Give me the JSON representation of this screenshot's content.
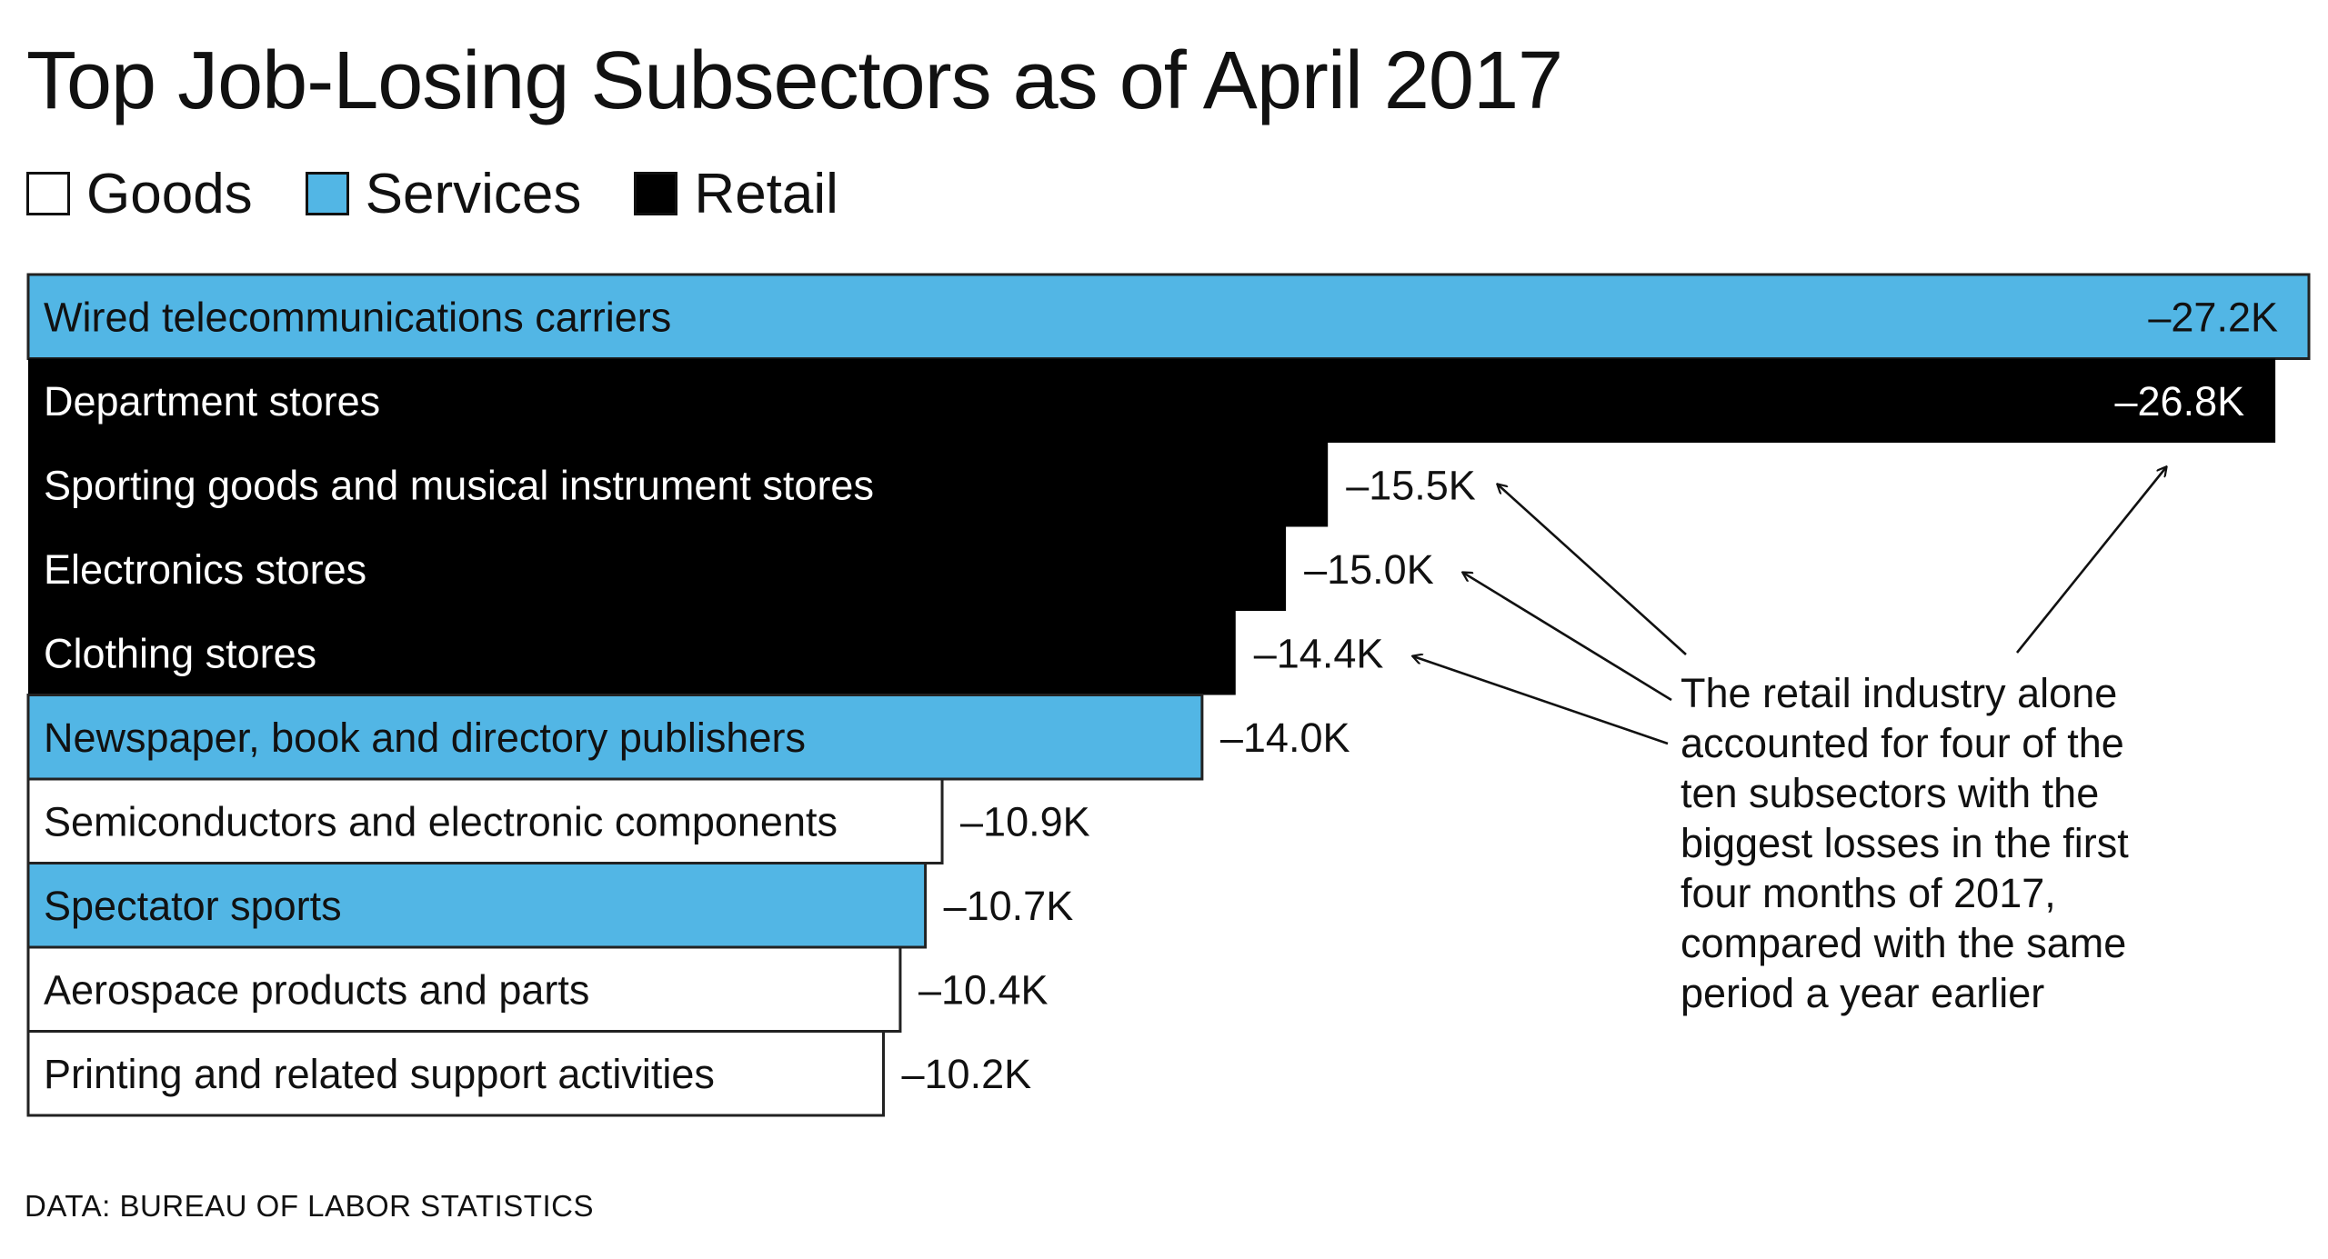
{
  "chart_data": {
    "type": "bar",
    "orientation": "horizontal",
    "title": "Top Job-Losing Subsectors as of April 2017",
    "legend": [
      {
        "name": "Goods",
        "color": "#ffffff"
      },
      {
        "name": "Services",
        "color": "#52b6e5"
      },
      {
        "name": "Retail",
        "color": "#000000"
      }
    ],
    "units": "thousands of jobs",
    "bars": [
      {
        "label": "Wired telecommunications carriers",
        "value": -27.2,
        "value_label": "–27.2K",
        "sector": "Services"
      },
      {
        "label": "Department stores",
        "value": -26.8,
        "value_label": "–26.8K",
        "sector": "Retail"
      },
      {
        "label": "Sporting goods and musical instrument stores",
        "value": -15.5,
        "value_label": "–15.5K",
        "sector": "Retail"
      },
      {
        "label": "Electronics stores",
        "value": -15.0,
        "value_label": "–15.0K",
        "sector": "Retail"
      },
      {
        "label": "Clothing stores",
        "value": -14.4,
        "value_label": "–14.4K",
        "sector": "Retail"
      },
      {
        "label": "Newspaper, book and directory publishers",
        "value": -14.0,
        "value_label": "–14.0K",
        "sector": "Services"
      },
      {
        "label": "Semiconductors and electronic components",
        "value": -10.9,
        "value_label": "–10.9K",
        "sector": "Goods"
      },
      {
        "label": "Spectator sports",
        "value": -10.7,
        "value_label": "–10.7K",
        "sector": "Services"
      },
      {
        "label": "Aerospace products and parts",
        "value": -10.4,
        "value_label": "–10.4K",
        "sector": "Goods"
      },
      {
        "label": "Printing and related support activities",
        "value": -10.2,
        "value_label": "–10.2K",
        "sector": "Goods"
      }
    ],
    "annotation": {
      "lines": [
        "The retail industry alone",
        "accounted for four of the",
        "ten subsectors with the",
        "biggest losses in the first",
        "four months of 2017,",
        "compared with the same",
        "period a year earlier"
      ],
      "points_to": [
        "Department stores",
        "Sporting goods and musical instrument stores",
        "Electronics stores",
        "Clothing stores"
      ]
    },
    "source": "DATA: BUREAU OF LABOR STATISTICS"
  }
}
